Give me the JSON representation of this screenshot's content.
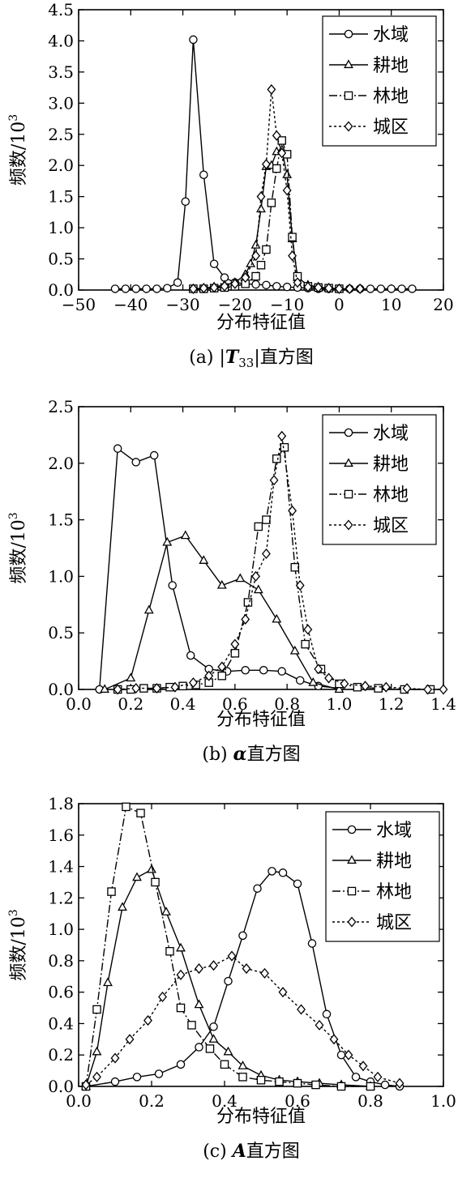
{
  "chart_data": [
    {
      "type": "line",
      "panel": "a",
      "caption_prefix": "(a) |",
      "caption_var": "T",
      "caption_sub": "33",
      "caption_suffix": "|直方图",
      "xlabel": "分布特征值",
      "ylabel": "频数/10",
      "ylabel_sup": "3",
      "xlim": [
        -50,
        20
      ],
      "ylim": [
        0,
        4.5
      ],
      "xticks": [
        -50,
        -40,
        -30,
        -20,
        -10,
        0,
        10,
        20
      ],
      "yticks": [
        0.0,
        0.5,
        1.0,
        1.5,
        2.0,
        2.5,
        3.0,
        3.5,
        4.0,
        4.5
      ],
      "xtick_decimals": 0,
      "ytick_decimals": 1,
      "legend": "top-right",
      "grid": false,
      "series": [
        {
          "name": "水域",
          "marker": "circle",
          "dash": "",
          "x": [
            -43,
            -41,
            -39,
            -37,
            -35,
            -33,
            -31,
            -29.5,
            -28,
            -26,
            -24,
            -22,
            -20,
            -18,
            -16,
            -14,
            -12,
            -10,
            -8,
            -6,
            -4,
            -2,
            0,
            2,
            4,
            6,
            8,
            10,
            12,
            14
          ],
          "y": [
            0.02,
            0.02,
            0.02,
            0.02,
            0.02,
            0.03,
            0.12,
            1.42,
            4.02,
            1.85,
            0.42,
            0.2,
            0.12,
            0.1,
            0.09,
            0.08,
            0.06,
            0.05,
            0.04,
            0.03,
            0.02,
            0.02,
            0.02,
            0.02,
            0.02,
            0.02,
            0.02,
            0.02,
            0.02,
            0.02
          ]
        },
        {
          "name": "耕地",
          "marker": "triangle",
          "dash": "",
          "x": [
            -28,
            -26,
            -24,
            -22,
            -20,
            -18,
            -17,
            -16,
            -15,
            -14,
            -13,
            -12,
            -11,
            -10,
            -9,
            -8,
            -6,
            -4,
            -2,
            0
          ],
          "y": [
            0.02,
            0.03,
            0.05,
            0.08,
            0.12,
            0.25,
            0.42,
            0.72,
            1.3,
            1.98,
            2.0,
            2.22,
            2.25,
            1.85,
            0.82,
            0.2,
            0.08,
            0.05,
            0.03,
            0.02
          ]
        },
        {
          "name": "林地",
          "marker": "square",
          "dash": "10,3,2,3",
          "x": [
            -28,
            -26,
            -24,
            -22,
            -20,
            -18,
            -16,
            -15,
            -14,
            -13,
            -12,
            -11,
            -10,
            -9,
            -8,
            -6,
            -4,
            -2,
            0
          ],
          "y": [
            0.02,
            0.02,
            0.03,
            0.04,
            0.06,
            0.1,
            0.22,
            0.4,
            0.65,
            1.4,
            1.95,
            2.4,
            2.18,
            0.85,
            0.22,
            0.06,
            0.04,
            0.03,
            0.02
          ]
        },
        {
          "name": "城区",
          "marker": "diamond",
          "dash": "3,3",
          "x": [
            -28,
            -26,
            -24,
            -22,
            -20,
            -18,
            -16,
            -15,
            -14,
            -13,
            -12,
            -11,
            -10,
            -9,
            -8,
            -6,
            -4,
            -2,
            0,
            2,
            4
          ],
          "y": [
            0.02,
            0.03,
            0.04,
            0.06,
            0.1,
            0.2,
            0.55,
            1.5,
            2.02,
            3.22,
            2.48,
            2.2,
            1.6,
            0.55,
            0.12,
            0.05,
            0.04,
            0.03,
            0.02,
            0.02,
            0.02
          ]
        }
      ]
    },
    {
      "type": "line",
      "panel": "b",
      "caption_prefix": "(b) ",
      "caption_var": "α",
      "caption_sub": "",
      "caption_suffix": "直方图",
      "xlabel": "分布特征值",
      "ylabel": "频数/10",
      "ylabel_sup": "3",
      "xlim": [
        0,
        1.4
      ],
      "ylim": [
        0,
        2.5
      ],
      "xticks": [
        0.0,
        0.2,
        0.4,
        0.6,
        0.8,
        1.0,
        1.2,
        1.4
      ],
      "yticks": [
        0.0,
        0.5,
        1.0,
        1.5,
        2.0,
        2.5
      ],
      "xtick_decimals": 1,
      "ytick_decimals": 1,
      "legend": "top-right",
      "grid": false,
      "series": [
        {
          "name": "水域",
          "marker": "circle",
          "dash": "",
          "x": [
            0.08,
            0.15,
            0.22,
            0.29,
            0.36,
            0.43,
            0.5,
            0.57,
            0.64,
            0.71,
            0.78,
            0.85,
            0.92,
            1.0
          ],
          "y": [
            0.0,
            2.13,
            2.01,
            2.07,
            0.92,
            0.3,
            0.18,
            0.16,
            0.17,
            0.17,
            0.16,
            0.08,
            0.03,
            0.01
          ]
        },
        {
          "name": "耕地",
          "marker": "triangle",
          "dash": "",
          "x": [
            0.1,
            0.2,
            0.27,
            0.34,
            0.41,
            0.48,
            0.55,
            0.62,
            0.69,
            0.76,
            0.83,
            0.9,
            1.0
          ],
          "y": [
            0.0,
            0.1,
            0.7,
            1.3,
            1.36,
            1.14,
            0.92,
            0.98,
            0.88,
            0.62,
            0.34,
            0.06,
            0.0
          ]
        },
        {
          "name": "林地",
          "marker": "square",
          "dash": "10,3,2,3",
          "x": [
            0.15,
            0.2,
            0.25,
            0.3,
            0.35,
            0.4,
            0.45,
            0.5,
            0.55,
            0.6,
            0.65,
            0.69,
            0.72,
            0.76,
            0.79,
            0.83,
            0.87,
            0.93,
            1.0,
            1.07,
            1.15,
            1.25,
            1.35
          ],
          "y": [
            0.0,
            0.0,
            0.01,
            0.01,
            0.02,
            0.03,
            0.04,
            0.06,
            0.12,
            0.32,
            0.77,
            1.44,
            1.5,
            2.04,
            2.14,
            1.08,
            0.4,
            0.18,
            0.05,
            0.02,
            0.01,
            0.0,
            0.0
          ]
        },
        {
          "name": "城区",
          "marker": "diamond",
          "dash": "3,3",
          "x": [
            0.15,
            0.22,
            0.3,
            0.37,
            0.44,
            0.5,
            0.55,
            0.6,
            0.64,
            0.68,
            0.72,
            0.75,
            0.78,
            0.82,
            0.85,
            0.88,
            0.92,
            0.96,
            1.02,
            1.1,
            1.18,
            1.26,
            1.34,
            1.4
          ],
          "y": [
            0.0,
            0.01,
            0.01,
            0.02,
            0.06,
            0.12,
            0.2,
            0.4,
            0.62,
            1.0,
            1.2,
            1.85,
            2.24,
            1.58,
            0.92,
            0.53,
            0.18,
            0.1,
            0.05,
            0.03,
            0.02,
            0.01,
            0.0,
            0.0
          ]
        }
      ]
    },
    {
      "type": "line",
      "panel": "c",
      "caption_prefix": "(c) ",
      "caption_var": "A",
      "caption_sub": "",
      "caption_suffix": "直方图",
      "xlabel": "分布特征值",
      "ylabel": "频数/10",
      "ylabel_sup": "3",
      "xlim": [
        0,
        1.0
      ],
      "ylim": [
        0,
        1.8
      ],
      "xticks": [
        0.0,
        0.2,
        0.4,
        0.6,
        0.8,
        1.0
      ],
      "yticks": [
        0.0,
        0.2,
        0.4,
        0.6,
        0.8,
        1.0,
        1.2,
        1.4,
        1.6,
        1.8
      ],
      "xtick_decimals": 1,
      "ytick_decimals": 1,
      "legend": "top-right",
      "grid": false,
      "series": [
        {
          "name": "水域",
          "marker": "circle",
          "dash": "",
          "x": [
            0.02,
            0.1,
            0.16,
            0.22,
            0.28,
            0.33,
            0.37,
            0.41,
            0.45,
            0.49,
            0.53,
            0.56,
            0.6,
            0.64,
            0.68,
            0.72,
            0.76,
            0.8,
            0.84,
            0.88
          ],
          "y": [
            0.0,
            0.03,
            0.06,
            0.08,
            0.14,
            0.25,
            0.38,
            0.67,
            0.96,
            1.26,
            1.37,
            1.36,
            1.29,
            0.91,
            0.46,
            0.2,
            0.06,
            0.03,
            0.01,
            0.0
          ]
        },
        {
          "name": "耕地",
          "marker": "triangle",
          "dash": "",
          "x": [
            0.02,
            0.05,
            0.08,
            0.12,
            0.16,
            0.2,
            0.24,
            0.28,
            0.33,
            0.37,
            0.41,
            0.45,
            0.5,
            0.55,
            0.6,
            0.66,
            0.72,
            0.8
          ],
          "y": [
            0.0,
            0.22,
            0.66,
            1.14,
            1.33,
            1.38,
            1.11,
            0.88,
            0.52,
            0.3,
            0.22,
            0.13,
            0.07,
            0.04,
            0.03,
            0.02,
            0.01,
            0.0
          ]
        },
        {
          "name": "林地",
          "marker": "square",
          "dash": "10,3,2,3",
          "x": [
            0.02,
            0.05,
            0.09,
            0.13,
            0.17,
            0.21,
            0.25,
            0.28,
            0.31,
            0.36,
            0.4,
            0.45,
            0.5,
            0.55,
            0.6,
            0.65,
            0.72,
            0.8
          ],
          "y": [
            0.0,
            0.49,
            1.24,
            1.78,
            1.74,
            1.3,
            0.86,
            0.5,
            0.39,
            0.24,
            0.14,
            0.06,
            0.04,
            0.03,
            0.02,
            0.01,
            0.0,
            0.0
          ]
        },
        {
          "name": "城区",
          "marker": "diamond",
          "dash": "3,3",
          "x": [
            0.02,
            0.05,
            0.1,
            0.14,
            0.19,
            0.23,
            0.28,
            0.33,
            0.37,
            0.42,
            0.46,
            0.51,
            0.56,
            0.61,
            0.66,
            0.7,
            0.74,
            0.78,
            0.82,
            0.88
          ],
          "y": [
            0.01,
            0.06,
            0.18,
            0.3,
            0.42,
            0.57,
            0.71,
            0.75,
            0.77,
            0.83,
            0.75,
            0.72,
            0.6,
            0.49,
            0.39,
            0.3,
            0.2,
            0.13,
            0.06,
            0.02
          ]
        }
      ]
    }
  ]
}
